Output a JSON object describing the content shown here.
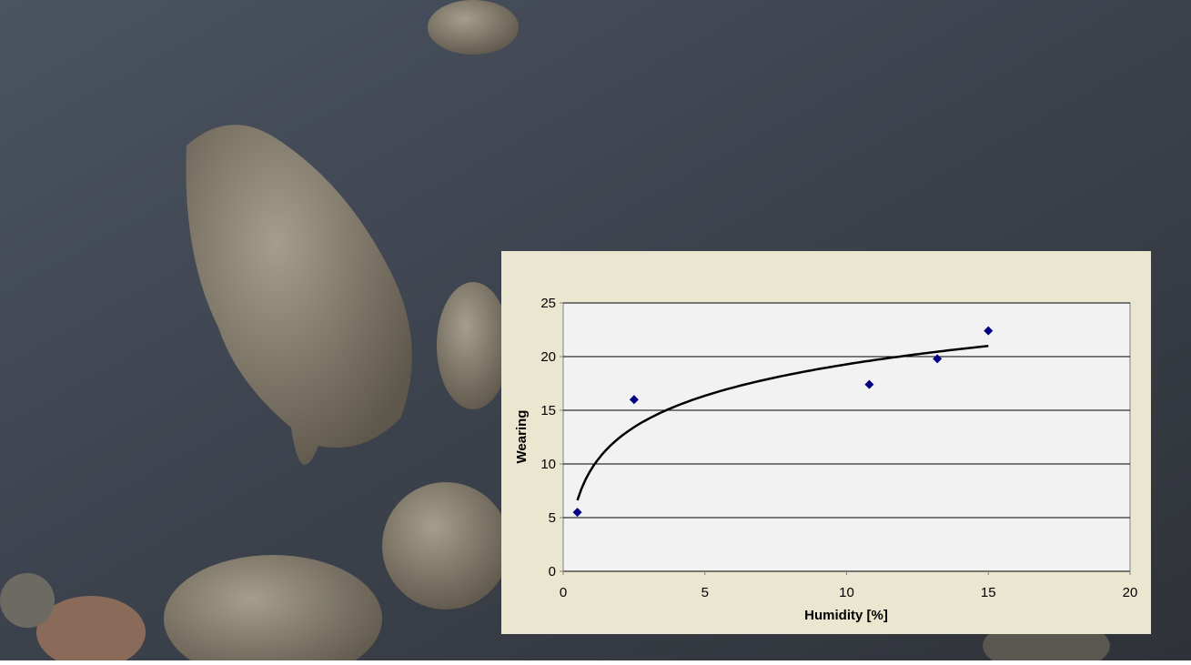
{
  "chart_data": {
    "type": "scatter",
    "x_label": "Humidity [%]",
    "y_label": "Wearing",
    "x": [
      0.5,
      2.5,
      10.8,
      13.2,
      15
    ],
    "series": [
      {
        "color": "#000080",
        "values": [
          5.5,
          16,
          17.4,
          19.8,
          22.4
        ]
      }
    ],
    "xlim": [
      0,
      20
    ],
    "xticks": [
      0,
      5,
      10,
      15,
      20
    ],
    "ylim": [
      0,
      25
    ],
    "yticks": [
      0,
      5,
      10,
      15,
      20,
      25
    ],
    "grid": true,
    "trendline": "logarithmic",
    "trendline_color": "#000000"
  }
}
